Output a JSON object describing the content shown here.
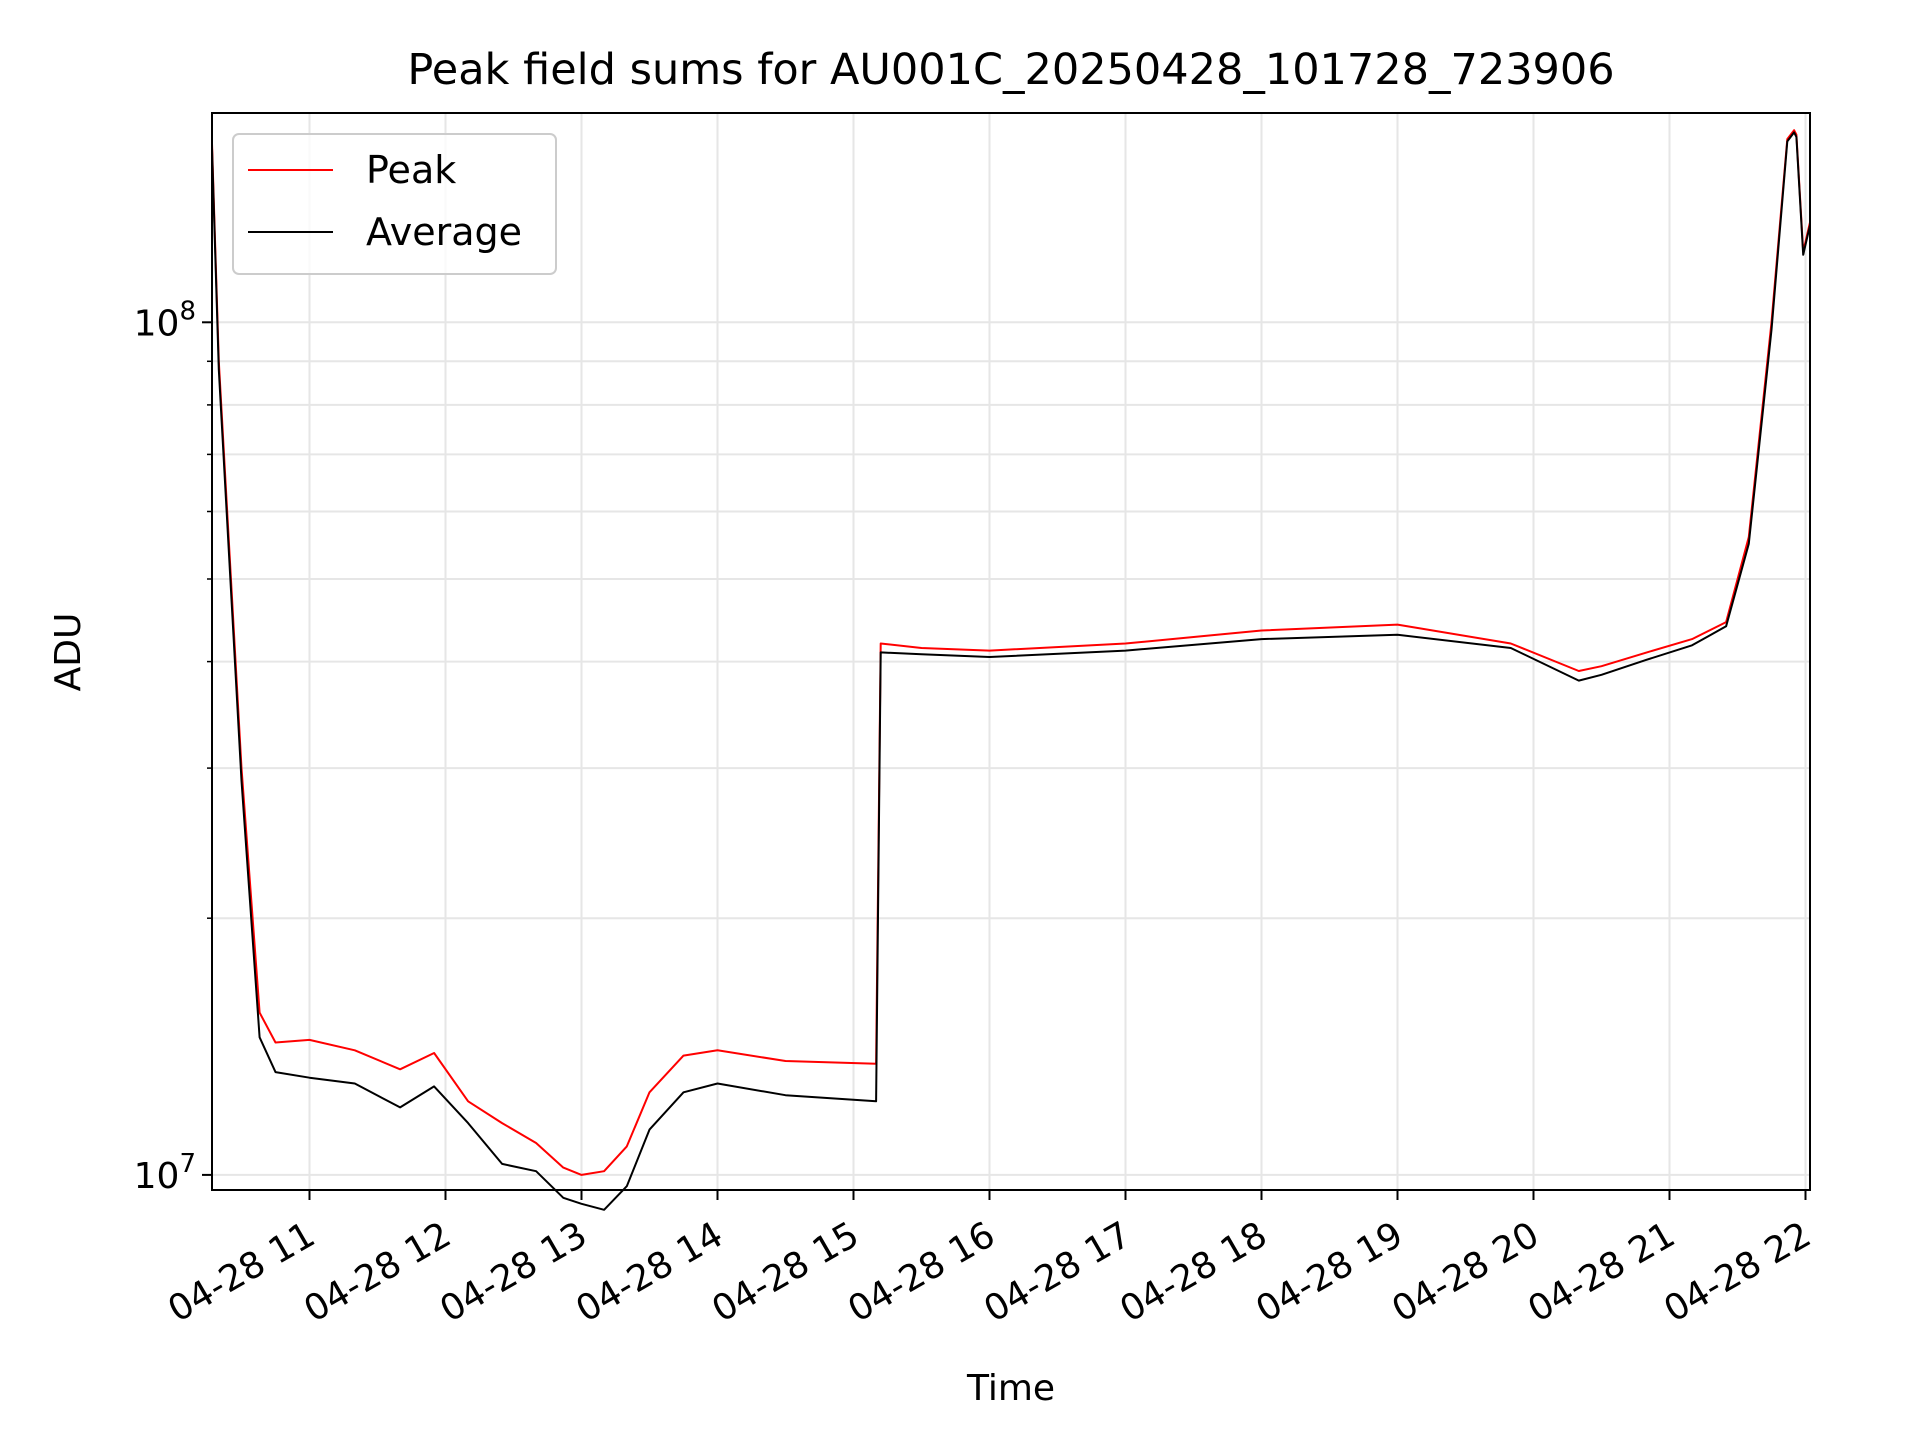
{
  "chart_data": {
    "type": "line",
    "title": "Peak field sums for AU001C_20250428_101728_723906",
    "xlabel": "Time",
    "ylabel": "ADU",
    "y_scale": "log",
    "ylim": [
      9600000,
      176000000
    ],
    "xlim": [
      "2025-04-28 10:17",
      "2025-04-28 22:02"
    ],
    "x_tick_labels": [
      "04-28 11",
      "04-28 12",
      "04-28 13",
      "04-28 14",
      "04-28 15",
      "04-28 16",
      "04-28 17",
      "04-28 18",
      "04-28 19",
      "04-28 20",
      "04-28 21",
      "04-28 22"
    ],
    "x_tick_rotation": 30,
    "y_tick_labels": [
      {
        "base": "10",
        "exp": "7",
        "value": 10000000
      },
      {
        "base": "10",
        "exp": "8",
        "value": 100000000
      }
    ],
    "grid": true,
    "legend_position": "upper-left",
    "series": [
      {
        "name": "Peak",
        "color": "#ff0000",
        "x": [
          "2025-04-28 10:17",
          "2025-04-28 10:20",
          "2025-04-28 10:30",
          "2025-04-28 10:38",
          "2025-04-28 10:45",
          "2025-04-28 11:00",
          "2025-04-28 11:20",
          "2025-04-28 11:40",
          "2025-04-28 11:55",
          "2025-04-28 12:10",
          "2025-04-28 12:25",
          "2025-04-28 12:40",
          "2025-04-28 12:52",
          "2025-04-28 13:00",
          "2025-04-28 13:10",
          "2025-04-28 13:20",
          "2025-04-28 13:30",
          "2025-04-28 13:45",
          "2025-04-28 14:00",
          "2025-04-28 14:30",
          "2025-04-28 15:10",
          "2025-04-28 15:12",
          "2025-04-28 15:30",
          "2025-04-28 16:00",
          "2025-04-28 17:00",
          "2025-04-28 18:00",
          "2025-04-28 19:00",
          "2025-04-28 19:50",
          "2025-04-28 20:20",
          "2025-04-28 20:30",
          "2025-04-28 20:50",
          "2025-04-28 21:10",
          "2025-04-28 21:25",
          "2025-04-28 21:35",
          "2025-04-28 21:45",
          "2025-04-28 21:52",
          "2025-04-28 21:55",
          "2025-04-28 21:56",
          "2025-04-28 21:59",
          "2025-04-28 22:02"
        ],
        "y": [
          162000000,
          90000000,
          30000000,
          15500000,
          14300000,
          14400000,
          14000000,
          13300000,
          13900000,
          12200000,
          11500000,
          10900000,
          10200000,
          10000000,
          10100000,
          10800000,
          12500000,
          13800000,
          14000000,
          13600000,
          13500000,
          42000000,
          41500000,
          41200000,
          42000000,
          43500000,
          44200000,
          42000000,
          39000000,
          39500000,
          41000000,
          42500000,
          44500000,
          56000000,
          100000000,
          164000000,
          168000000,
          166000000,
          121000000,
          131000000
        ]
      },
      {
        "name": "Average",
        "color": "#000000",
        "x": [
          "2025-04-28 10:17",
          "2025-04-28 10:20",
          "2025-04-28 10:30",
          "2025-04-28 10:38",
          "2025-04-28 10:45",
          "2025-04-28 11:00",
          "2025-04-28 11:20",
          "2025-04-28 11:40",
          "2025-04-28 11:55",
          "2025-04-28 12:10",
          "2025-04-28 12:25",
          "2025-04-28 12:40",
          "2025-04-28 12:52",
          "2025-04-28 13:00",
          "2025-04-28 13:10",
          "2025-04-28 13:20",
          "2025-04-28 13:30",
          "2025-04-28 13:45",
          "2025-04-28 14:00",
          "2025-04-28 14:30",
          "2025-04-28 15:10",
          "2025-04-28 15:12",
          "2025-04-28 15:30",
          "2025-04-28 16:00",
          "2025-04-28 17:00",
          "2025-04-28 18:00",
          "2025-04-28 19:00",
          "2025-04-28 19:50",
          "2025-04-28 20:20",
          "2025-04-28 20:30",
          "2025-04-28 20:50",
          "2025-04-28 21:10",
          "2025-04-28 21:25",
          "2025-04-28 21:35",
          "2025-04-28 21:45",
          "2025-04-28 21:52",
          "2025-04-28 21:55",
          "2025-04-28 21:56",
          "2025-04-28 21:59",
          "2025-04-28 22:02"
        ],
        "y": [
          160000000,
          88000000,
          29000000,
          14500000,
          13200000,
          13000000,
          12800000,
          12000000,
          12700000,
          11500000,
          10300000,
          10100000,
          9400000,
          9250000,
          9100000,
          9700000,
          11300000,
          12500000,
          12800000,
          12400000,
          12200000,
          41000000,
          40800000,
          40500000,
          41200000,
          42500000,
          43000000,
          41500000,
          38000000,
          38600000,
          40200000,
          41800000,
          44000000,
          55000000,
          98000000,
          163000000,
          167000000,
          165000000,
          120000000,
          130000000
        ]
      }
    ]
  }
}
